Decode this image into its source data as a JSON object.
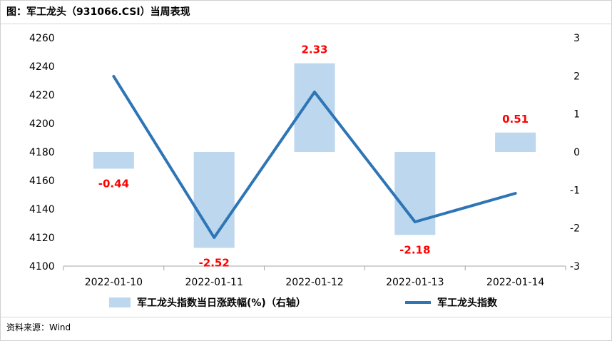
{
  "title": "图：军工龙头（931066.CSI）当周表现",
  "source": "资料来源：Wind",
  "chart_data": {
    "type": "bar+line",
    "categories": [
      "2022-01-10",
      "2022-01-11",
      "2022-01-12",
      "2022-01-13",
      "2022-01-14"
    ],
    "left_axis": {
      "min": 4100,
      "max": 4260,
      "ticks": [
        "4100",
        "4120",
        "4140",
        "4160",
        "4180",
        "4200",
        "4220",
        "4240",
        "4260"
      ]
    },
    "right_axis": {
      "min": -3,
      "max": 3,
      "ticks": [
        "-3",
        "-2",
        "-1",
        "0",
        "1",
        "2",
        "3"
      ]
    },
    "series": [
      {
        "name": "军工龙头指数当日涨跌幅(%)（右轴）",
        "type": "bar",
        "axis": "right",
        "color": "#bdd7ee",
        "values": [
          -0.44,
          -2.52,
          2.33,
          -2.18,
          0.51
        ],
        "labels": [
          "-0.44",
          "-2.52",
          "2.33",
          "-2.18",
          "0.51"
        ]
      },
      {
        "name": "军工龙头指数",
        "type": "line",
        "axis": "left",
        "color": "#2e75b6",
        "values": [
          4233,
          4120,
          4222,
          4131,
          4151
        ]
      }
    ],
    "legend_position": "bottom",
    "label_color": "#ff0000"
  }
}
